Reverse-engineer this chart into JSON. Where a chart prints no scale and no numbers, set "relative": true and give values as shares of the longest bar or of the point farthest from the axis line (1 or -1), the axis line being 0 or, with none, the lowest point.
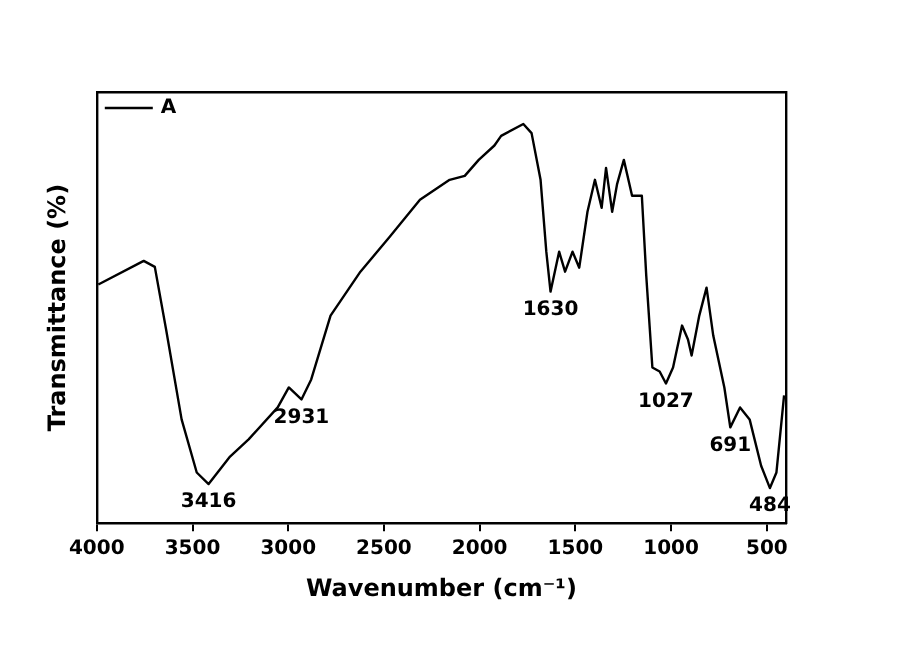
{
  "chart_data": {
    "type": "line",
    "xlabel": "Wavenumber (cm⁻¹)",
    "ylabel": "Transmittance (%)",
    "relative": true,
    "x": [
      3992,
      3755,
      3697,
      3638,
      3557,
      3478,
      3416,
      3304,
      3207,
      3055,
      2997,
      2931,
      2880,
      2779,
      2623,
      2472,
      2312,
      2157,
      2078,
      2005,
      1923,
      1888,
      1772,
      1729,
      1682,
      1652,
      1630,
      1585,
      1554,
      1515,
      1480,
      1437,
      1398,
      1363,
      1340,
      1308,
      1282,
      1247,
      1204,
      1153,
      1130,
      1098,
      1060,
      1027,
      990,
      943,
      912,
      893,
      853,
      815,
      780,
      722,
      691,
      640,
      590,
      530,
      484,
      450,
      410
    ],
    "series": [
      {
        "name": "A",
        "color": "#000000",
        "values": [
          0.598,
          0.657,
          0.642,
          0.485,
          0.26,
          0.127,
          0.098,
          0.167,
          0.21,
          0.29,
          0.34,
          0.31,
          0.36,
          0.52,
          0.63,
          0.716,
          0.81,
          0.86,
          0.87,
          0.91,
          0.946,
          0.97,
          1,
          0.977,
          0.86,
          0.68,
          0.58,
          0.68,
          0.63,
          0.68,
          0.64,
          0.78,
          0.86,
          0.79,
          0.89,
          0.78,
          0.85,
          0.91,
          0.82,
          0.82,
          0.62,
          0.39,
          0.38,
          0.35,
          0.39,
          0.495,
          0.46,
          0.42,
          0.52,
          0.59,
          0.47,
          0.34,
          0.24,
          0.29,
          0.26,
          0.144,
          0.088,
          0.127,
          0.32
        ]
      }
    ],
    "xlim": [
      4000,
      400
    ],
    "xticks": [
      4000,
      3500,
      3000,
      2500,
      2000,
      1500,
      1000,
      500
    ],
    "annotations": [
      {
        "text": "3416",
        "x": 3416,
        "y": 0.098
      },
      {
        "text": "2931",
        "x": 2931,
        "y": 0.31
      },
      {
        "text": "1630",
        "x": 1630,
        "y": 0.58
      },
      {
        "text": "1027",
        "x": 1027,
        "y": 0.35
      },
      {
        "text": "691",
        "x": 691,
        "y": 0.24
      },
      {
        "text": "484",
        "x": 484,
        "y": 0.088
      }
    ],
    "legend": "top left",
    "grid": false,
    "marker": "none",
    "line_style": "solid"
  }
}
